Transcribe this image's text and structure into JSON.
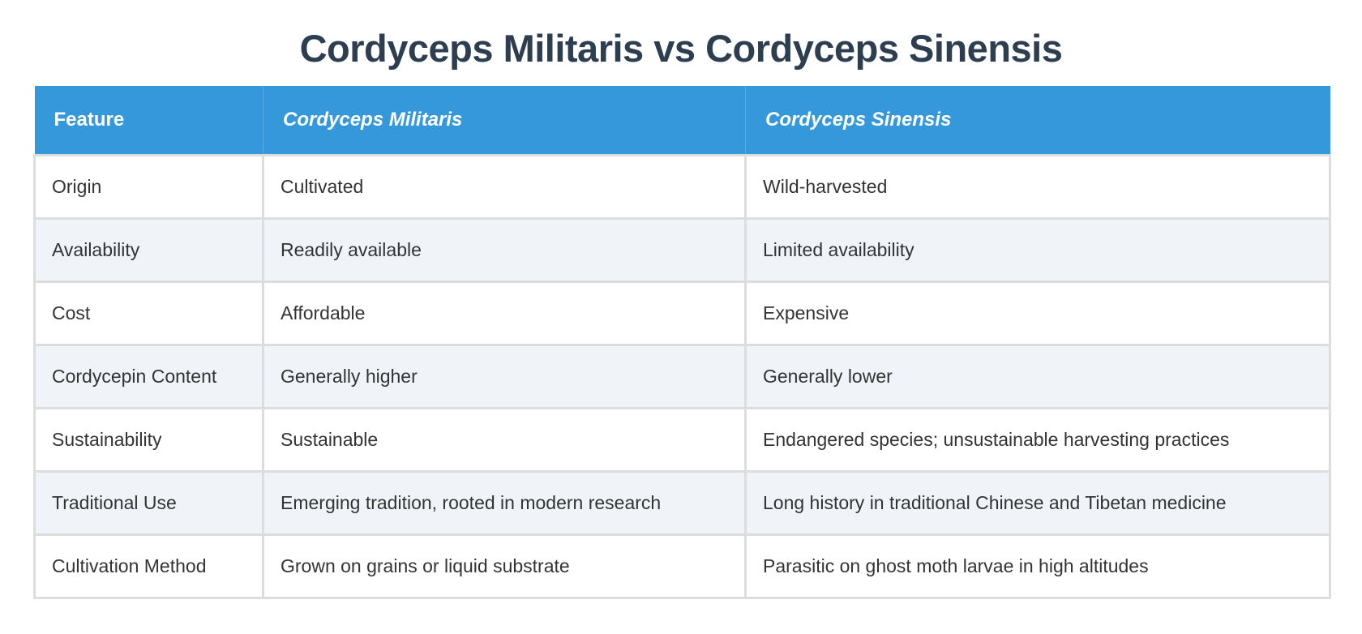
{
  "title": "Cordyceps Militaris vs Cordyceps Sinensis",
  "colors": {
    "title": "#2c3e50",
    "header_bg": "#3498db",
    "header_text": "#ffffff",
    "row_alt_bg": "#f0f4f8",
    "border": "#dddddd",
    "body_text": "#333333"
  },
  "table": {
    "headers": [
      "Feature",
      "Cordyceps Militaris",
      "Cordyceps Sinensis"
    ],
    "rows": [
      [
        "Origin",
        "Cultivated",
        "Wild-harvested"
      ],
      [
        "Availability",
        "Readily available",
        "Limited availability"
      ],
      [
        "Cost",
        "Affordable",
        "Expensive"
      ],
      [
        "Cordycepin Content",
        "Generally higher",
        "Generally lower"
      ],
      [
        "Sustainability",
        "Sustainable",
        "Endangered species; unsustainable harvesting practices"
      ],
      [
        "Traditional Use",
        "Emerging tradition, rooted in modern research",
        "Long history in traditional Chinese and Tibetan medicine"
      ],
      [
        "Cultivation Method",
        "Grown on grains or liquid substrate",
        "Parasitic on ghost moth larvae in high altitudes"
      ]
    ]
  }
}
